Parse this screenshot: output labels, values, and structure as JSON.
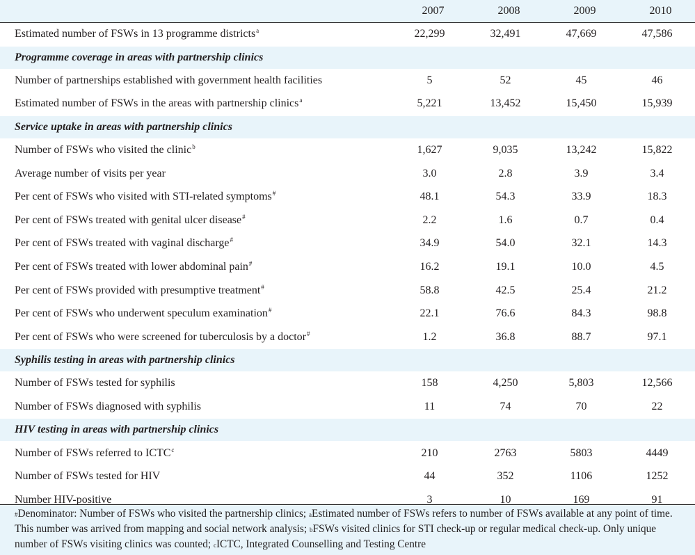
{
  "table": {
    "years": [
      "2007",
      "2008",
      "2009",
      "2010"
    ],
    "rows": [
      {
        "kind": "data",
        "shade": "white",
        "label": "Estimated number of FSWs in 13 programme districts",
        "mark": "a",
        "values": [
          "22,299",
          "32,491",
          "47,669",
          "47,586"
        ]
      },
      {
        "kind": "section",
        "label": "Programme coverage in areas with partnership clinics"
      },
      {
        "kind": "data",
        "shade": "white",
        "label": "Number of partnerships established with government health facilities",
        "mark": "",
        "values": [
          "5",
          "52",
          "45",
          "46"
        ]
      },
      {
        "kind": "data",
        "shade": "white",
        "label": "Estimated number of FSWs in the areas with partnership clinics",
        "mark": "a",
        "values": [
          "5,221",
          "13,452",
          "15,450",
          "15,939"
        ]
      },
      {
        "kind": "section",
        "label": "Service uptake in areas with partnership clinics"
      },
      {
        "kind": "data",
        "shade": "white",
        "label": "Number of FSWs who visited the clinic",
        "mark": "b",
        "values": [
          "1,627",
          "9,035",
          "13,242",
          "15,822"
        ]
      },
      {
        "kind": "data",
        "shade": "white",
        "label": "Average number of visits per year",
        "mark": "",
        "values": [
          "3.0",
          "2.8",
          "3.9",
          "3.4"
        ]
      },
      {
        "kind": "data",
        "shade": "white",
        "label": "Per cent of FSWs who visited with STI-related symptoms",
        "mark": "#",
        "values": [
          "48.1",
          "54.3",
          "33.9",
          "18.3"
        ]
      },
      {
        "kind": "data",
        "shade": "white",
        "label": "Per cent of FSWs treated with genital ulcer disease",
        "mark": "#",
        "values": [
          "2.2",
          "1.6",
          "0.7",
          "0.4"
        ]
      },
      {
        "kind": "data",
        "shade": "white",
        "label": "Per cent of FSWs treated with vaginal discharge",
        "mark": "#",
        "values": [
          "34.9",
          "54.0",
          "32.1",
          "14.3"
        ]
      },
      {
        "kind": "data",
        "shade": "white",
        "label": "Per cent of FSWs treated with lower abdominal pain",
        "mark": "#",
        "values": [
          "16.2",
          "19.1",
          "10.0",
          "4.5"
        ]
      },
      {
        "kind": "data",
        "shade": "white",
        "label": "Per cent of FSWs provided with presumptive treatment",
        "mark": "#",
        "values": [
          "58.8",
          "42.5",
          "25.4",
          "21.2"
        ]
      },
      {
        "kind": "data",
        "shade": "white",
        "label": "Per cent of FSWs who underwent speculum examination",
        "mark": "#",
        "values": [
          "22.1",
          "76.6",
          "84.3",
          "98.8"
        ]
      },
      {
        "kind": "data",
        "shade": "white",
        "label": "Per cent of FSWs who were screened for tuberculosis by a doctor",
        "mark": "#",
        "values": [
          "1.2",
          "36.8",
          "88.7",
          "97.1"
        ]
      },
      {
        "kind": "section",
        "label": "Syphilis testing in areas with partnership clinics"
      },
      {
        "kind": "data",
        "shade": "white",
        "label": "Number of FSWs tested for syphilis",
        "mark": "",
        "values": [
          "158",
          "4,250",
          "5,803",
          "12,566"
        ]
      },
      {
        "kind": "data",
        "shade": "white",
        "label": "Number of FSWs diagnosed with syphilis",
        "mark": "",
        "values": [
          "11",
          "74",
          "70",
          "22"
        ]
      },
      {
        "kind": "section",
        "label": "HIV testing in areas with partnership clinics"
      },
      {
        "kind": "data",
        "shade": "white",
        "label": "Number of FSWs referred to ICTC",
        "mark": "c",
        "values": [
          "210",
          "2763",
          "5803",
          "4449"
        ]
      },
      {
        "kind": "data",
        "shade": "white",
        "label": "Number of FSWs tested for HIV",
        "mark": "",
        "values": [
          "44",
          "352",
          "1106",
          "1252"
        ]
      },
      {
        "kind": "data",
        "shade": "white",
        "label": "Number HIV-positive",
        "mark": "",
        "values": [
          "3",
          "10",
          "169",
          "91"
        ]
      }
    ]
  },
  "footnote": {
    "parts": [
      {
        "mark": "#",
        "text": "Denominator: Number of FSWs who visited the partnership clinics; "
      },
      {
        "mark": "a",
        "text": "Estimated number of FSWs refers to number of FSWs available at any point of time. This number was arrived from mapping and social network analysis; "
      },
      {
        "mark": "b",
        "text": "FSWs visited clinics for STI check-up or regular medical check-up. Only unique number of FSWs visiting clinics was counted; "
      },
      {
        "mark": "c",
        "text": "ICTC, Integrated Counselling and Testing Centre"
      }
    ]
  }
}
